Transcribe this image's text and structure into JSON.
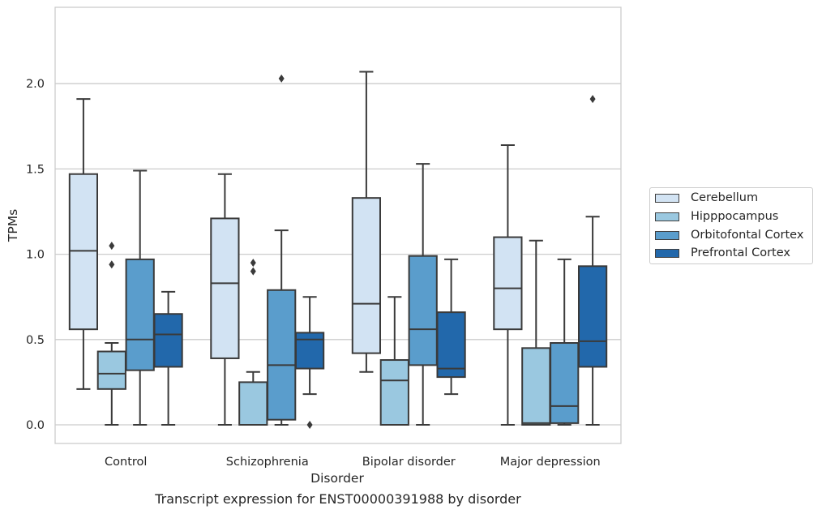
{
  "chart_data": {
    "type": "box",
    "categories": [
      "Control",
      "Schizophrenia",
      "Bipolar disorder",
      "Major depression"
    ],
    "xlabel": "Disorder",
    "ylabel": "TPMs",
    "ylim": [
      -0.11,
      2.46
    ],
    "yticks": [
      "0.0",
      "0.5",
      "1.0",
      "1.5",
      "2.0"
    ],
    "grid": "horizontal",
    "legend_position": "right",
    "caption": "Transcript expression for ENST00000391988 by disorder",
    "series": [
      {
        "name": "Cerebellum",
        "color": "#d2e3f3",
        "boxes": [
          {
            "whislo": 0.21,
            "q1": 0.56,
            "med": 1.02,
            "q3": 1.47,
            "whishi": 1.91,
            "fliers": []
          },
          {
            "whislo": 0.0,
            "q1": 0.39,
            "med": 0.83,
            "q3": 1.21,
            "whishi": 1.47,
            "fliers": []
          },
          {
            "whislo": 0.31,
            "q1": 0.42,
            "med": 0.71,
            "q3": 1.33,
            "whishi": 2.07,
            "fliers": []
          },
          {
            "whislo": 0.0,
            "q1": 0.56,
            "med": 0.8,
            "q3": 1.1,
            "whishi": 1.64,
            "fliers": []
          }
        ]
      },
      {
        "name": "Hipppocampus",
        "color": "#9ac8e0",
        "boxes": [
          {
            "whislo": 0.0,
            "q1": 0.21,
            "med": 0.3,
            "q3": 0.43,
            "whishi": 0.48,
            "fliers": [
              0.94,
              1.05
            ]
          },
          {
            "whislo": 0.0,
            "q1": 0.0,
            "med": 0.0,
            "q3": 0.25,
            "whishi": 0.31,
            "fliers": [
              0.9,
              0.95
            ]
          },
          {
            "whislo": 0.0,
            "q1": 0.0,
            "med": 0.26,
            "q3": 0.38,
            "whishi": 0.75,
            "fliers": []
          },
          {
            "whislo": 0.0,
            "q1": 0.0,
            "med": 0.01,
            "q3": 0.45,
            "whishi": 1.08,
            "fliers": []
          }
        ]
      },
      {
        "name": "Orbitofontal Cortex",
        "color": "#5a9dcc",
        "boxes": [
          {
            "whislo": 0.0,
            "q1": 0.32,
            "med": 0.5,
            "q3": 0.97,
            "whishi": 1.49,
            "fliers": []
          },
          {
            "whislo": 0.0,
            "q1": 0.03,
            "med": 0.35,
            "q3": 0.79,
            "whishi": 1.14,
            "fliers": [
              2.03
            ]
          },
          {
            "whislo": 0.0,
            "q1": 0.35,
            "med": 0.56,
            "q3": 0.99,
            "whishi": 1.53,
            "fliers": []
          },
          {
            "whislo": 0.0,
            "q1": 0.01,
            "med": 0.11,
            "q3": 0.48,
            "whishi": 0.97,
            "fliers": []
          }
        ]
      },
      {
        "name": "Prefrontal Cortex",
        "color": "#2268ab",
        "boxes": [
          {
            "whislo": 0.0,
            "q1": 0.34,
            "med": 0.53,
            "q3": 0.65,
            "whishi": 0.78,
            "fliers": []
          },
          {
            "whislo": 0.18,
            "q1": 0.33,
            "med": 0.5,
            "q3": 0.54,
            "whishi": 0.75,
            "fliers": [
              0.0
            ]
          },
          {
            "whislo": 0.18,
            "q1": 0.28,
            "med": 0.33,
            "q3": 0.66,
            "whishi": 0.97,
            "fliers": []
          },
          {
            "whislo": 0.0,
            "q1": 0.34,
            "med": 0.49,
            "q3": 0.93,
            "whishi": 1.22,
            "fliers": [
              1.91
            ]
          }
        ]
      }
    ]
  }
}
